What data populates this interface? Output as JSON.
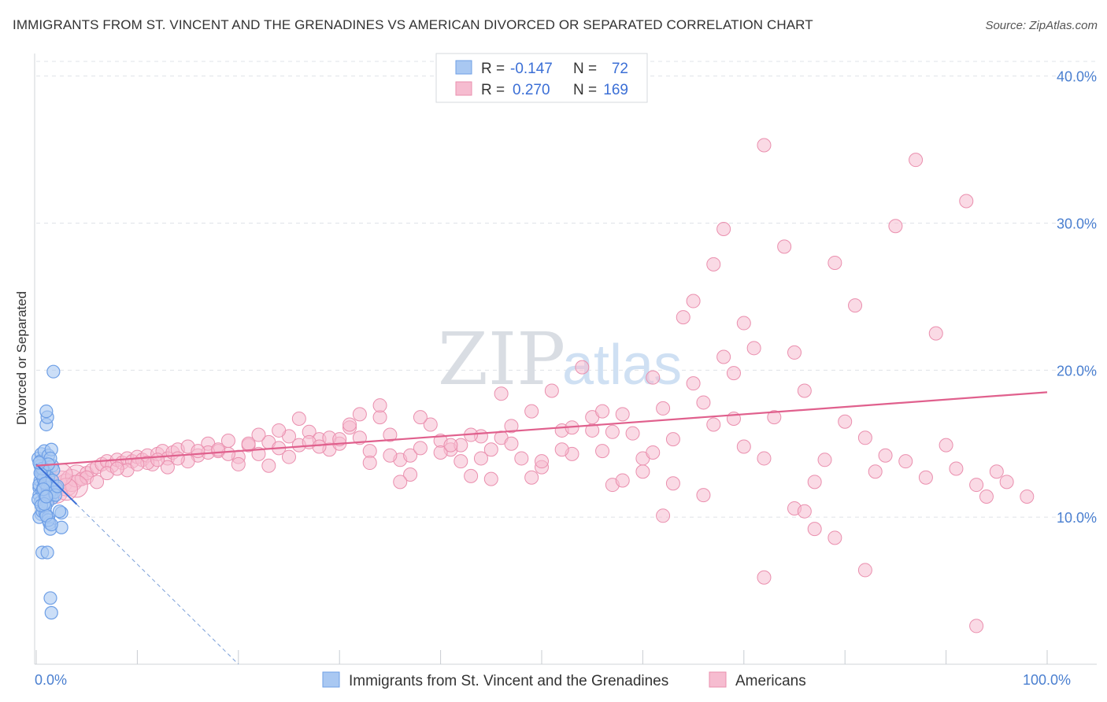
{
  "title": "IMMIGRANTS FROM ST. VINCENT AND THE GRENADINES VS AMERICAN DIVORCED OR SEPARATED CORRELATION CHART",
  "source": "Source: ZipAtlas.com",
  "watermark": {
    "main": "ZIP",
    "sub": "atlas"
  },
  "colors": {
    "blue": "#6e9fe6",
    "blue_fill": "#a9c8f2",
    "blue_line": "#3b6fd6",
    "pink": "#ea8fae",
    "pink_fill": "#f6bcd0",
    "pink_line": "#e0608d",
    "grid": "#dfe3e8",
    "tick_label": "#4a7fd0"
  },
  "stats": [
    {
      "r_label": "R =",
      "r": "-0.147",
      "n_label": "N =",
      "n": "72"
    },
    {
      "r_label": "R =",
      "r": "0.270",
      "n_label": "N =",
      "n": "169"
    }
  ],
  "chart_data": {
    "type": "scatter",
    "title": "IMMIGRANTS FROM ST. VINCENT AND THE GRENADINES VS AMERICAN DIVORCED OR SEPARATED CORRELATION CHART",
    "xlabel": "",
    "ylabel": "Divorced or Separated",
    "xlim": [
      0,
      100
    ],
    "ylim": [
      0,
      41
    ],
    "x_tick_labels": [
      {
        "value": 0,
        "label": "0.0%"
      },
      {
        "value": 100,
        "label": "100.0%"
      }
    ],
    "y_tick_labels": [
      {
        "value": 10,
        "label": "10.0%"
      },
      {
        "value": 20,
        "label": "20.0%"
      },
      {
        "value": 30,
        "label": "30.0%"
      },
      {
        "value": 40,
        "label": "40.0%"
      }
    ],
    "grid": true,
    "legend_position": "bottom-center",
    "series": [
      {
        "name": "Immigrants from St. Vincent and the Grenadines",
        "color": "#6e9fe6",
        "trend": {
          "x": [
            0,
            20
          ],
          "y": [
            13.6,
            0
          ]
        },
        "points": [
          [
            0.3,
            12.0
          ],
          [
            0.4,
            12.5
          ],
          [
            0.5,
            13.2
          ],
          [
            0.3,
            11.5
          ],
          [
            0.6,
            12.8
          ],
          [
            0.2,
            14.0
          ],
          [
            0.4,
            13.5
          ],
          [
            0.5,
            14.3
          ],
          [
            0.7,
            13.0
          ],
          [
            0.3,
            12.2
          ],
          [
            0.6,
            11.8
          ],
          [
            0.8,
            12.4
          ],
          [
            0.4,
            11.0
          ],
          [
            0.5,
            10.2
          ],
          [
            0.3,
            10.0
          ],
          [
            0.6,
            10.4
          ],
          [
            0.9,
            10.3
          ],
          [
            0.2,
            11.2
          ],
          [
            0.7,
            12.0
          ],
          [
            0.4,
            13.8
          ],
          [
            1.0,
            13.2
          ],
          [
            0.8,
            14.5
          ],
          [
            1.2,
            14.2
          ],
          [
            1.0,
            16.3
          ],
          [
            1.1,
            16.8
          ],
          [
            1.0,
            17.2
          ],
          [
            1.5,
            14.6
          ],
          [
            1.6,
            13.5
          ],
          [
            1.7,
            13.2
          ],
          [
            1.2,
            12.7
          ],
          [
            1.4,
            12.2
          ],
          [
            1.3,
            11.8
          ],
          [
            1.5,
            11.5
          ],
          [
            1.8,
            11.9
          ],
          [
            2.0,
            12.0
          ],
          [
            1.6,
            11.3
          ],
          [
            1.1,
            11.0
          ],
          [
            0.9,
            10.7
          ],
          [
            1.2,
            10.0
          ],
          [
            1.3,
            9.6
          ],
          [
            1.4,
            9.2
          ],
          [
            1.2,
            9.8
          ],
          [
            1.0,
            10.1
          ],
          [
            2.5,
            10.3
          ],
          [
            2.3,
            10.4
          ],
          [
            2.5,
            9.3
          ],
          [
            1.5,
            9.5
          ],
          [
            0.6,
            7.6
          ],
          [
            1.1,
            7.6
          ],
          [
            1.4,
            4.5
          ],
          [
            1.5,
            3.5
          ],
          [
            1.7,
            19.9
          ],
          [
            0.8,
            13.1
          ],
          [
            0.5,
            12.9
          ],
          [
            0.7,
            12.6
          ],
          [
            1.1,
            12.0
          ],
          [
            1.3,
            11.6
          ],
          [
            0.9,
            11.4
          ],
          [
            1.4,
            14.0
          ],
          [
            0.5,
            10.8
          ],
          [
            0.8,
            10.9
          ],
          [
            1.6,
            12.5
          ],
          [
            0.6,
            13.3
          ],
          [
            0.4,
            13.0
          ],
          [
            1.2,
            13.6
          ],
          [
            0.9,
            12.3
          ],
          [
            1.8,
            11.7
          ],
          [
            1.9,
            11.5
          ],
          [
            0.7,
            11.9
          ],
          [
            1.0,
            11.4
          ],
          [
            2.1,
            12.1
          ],
          [
            0.3,
            13.7
          ]
        ]
      },
      {
        "name": "Americans",
        "color": "#ea8fae",
        "trend": {
          "x": [
            0,
            100
          ],
          "y": [
            13.5,
            18.5
          ]
        },
        "points": [
          [
            1.5,
            12.0
          ],
          [
            2.0,
            11.7
          ],
          [
            2.5,
            12.4
          ],
          [
            3.0,
            12.2
          ],
          [
            3.5,
            12.5
          ],
          [
            4.0,
            12.8
          ],
          [
            4.5,
            12.6
          ],
          [
            5.0,
            13.0
          ],
          [
            5.5,
            13.2
          ],
          [
            6.0,
            13.4
          ],
          [
            6.5,
            13.6
          ],
          [
            7.0,
            13.8
          ],
          [
            7.5,
            13.5
          ],
          [
            8.0,
            13.9
          ],
          [
            8.5,
            13.7
          ],
          [
            9.0,
            14.0
          ],
          [
            9.5,
            13.8
          ],
          [
            10.0,
            14.1
          ],
          [
            10.5,
            13.9
          ],
          [
            11.0,
            14.2
          ],
          [
            11.5,
            13.6
          ],
          [
            12.0,
            14.3
          ],
          [
            12.5,
            14.5
          ],
          [
            13.0,
            14.0
          ],
          [
            13.5,
            14.4
          ],
          [
            14.0,
            14.6
          ],
          [
            15.0,
            14.8
          ],
          [
            16.0,
            14.2
          ],
          [
            17.0,
            15.0
          ],
          [
            18.0,
            14.5
          ],
          [
            19.0,
            15.2
          ],
          [
            20.0,
            14.1
          ],
          [
            21.0,
            14.9
          ],
          [
            22.0,
            14.3
          ],
          [
            23.0,
            15.1
          ],
          [
            24.0,
            14.7
          ],
          [
            25.0,
            15.5
          ],
          [
            26.0,
            14.9
          ],
          [
            27.0,
            15.8
          ],
          [
            28.0,
            15.3
          ],
          [
            29.0,
            14.6
          ],
          [
            30.0,
            15.0
          ],
          [
            31.0,
            16.1
          ],
          [
            32.0,
            15.4
          ],
          [
            33.0,
            14.5
          ],
          [
            34.0,
            16.8
          ],
          [
            35.0,
            15.6
          ],
          [
            36.0,
            13.9
          ],
          [
            37.0,
            14.2
          ],
          [
            38.0,
            14.7
          ],
          [
            39.0,
            16.3
          ],
          [
            40.0,
            15.2
          ],
          [
            41.0,
            14.6
          ],
          [
            42.0,
            13.8
          ],
          [
            43.0,
            12.8
          ],
          [
            44.0,
            15.5
          ],
          [
            45.0,
            14.6
          ],
          [
            46.0,
            15.4
          ],
          [
            47.0,
            15.0
          ],
          [
            48.0,
            14.0
          ],
          [
            49.0,
            17.2
          ],
          [
            50.0,
            13.4
          ],
          [
            51.0,
            18.6
          ],
          [
            52.0,
            15.9
          ],
          [
            53.0,
            14.3
          ],
          [
            54.0,
            20.2
          ],
          [
            55.0,
            16.8
          ],
          [
            56.0,
            14.5
          ],
          [
            57.0,
            12.2
          ],
          [
            58.0,
            17.0
          ],
          [
            59.0,
            15.7
          ],
          [
            60.0,
            13.1
          ],
          [
            61.0,
            19.5
          ],
          [
            62.0,
            17.4
          ],
          [
            63.0,
            12.3
          ],
          [
            64.0,
            23.6
          ],
          [
            65.0,
            24.7
          ],
          [
            66.0,
            17.8
          ],
          [
            67.0,
            27.2
          ],
          [
            68.0,
            29.6
          ],
          [
            69.0,
            16.7
          ],
          [
            70.0,
            23.2
          ],
          [
            71.0,
            21.5
          ],
          [
            72.0,
            14.0
          ],
          [
            73.0,
            16.8
          ],
          [
            74.0,
            28.4
          ],
          [
            75.0,
            21.2
          ],
          [
            76.0,
            18.6
          ],
          [
            77.0,
            12.4
          ],
          [
            78.0,
            13.9
          ],
          [
            79.0,
            27.3
          ],
          [
            80.0,
            16.5
          ],
          [
            81.0,
            24.4
          ],
          [
            82.0,
            15.4
          ],
          [
            83.0,
            13.1
          ],
          [
            84.0,
            14.2
          ],
          [
            85.0,
            29.8
          ],
          [
            86.0,
            13.8
          ],
          [
            87.0,
            34.3
          ],
          [
            88.0,
            12.7
          ],
          [
            89.0,
            22.5
          ],
          [
            90.0,
            14.9
          ],
          [
            91.0,
            13.3
          ],
          [
            92.0,
            31.5
          ],
          [
            93.0,
            12.2
          ],
          [
            94.0,
            11.4
          ],
          [
            95.0,
            13.1
          ],
          [
            96.0,
            12.4
          ],
          [
            98.0,
            11.4
          ],
          [
            72.0,
            35.3
          ],
          [
            56.0,
            17.2
          ],
          [
            60.0,
            14.0
          ],
          [
            62.0,
            10.1
          ],
          [
            65.0,
            19.1
          ],
          [
            68.0,
            20.9
          ],
          [
            69.0,
            19.8
          ],
          [
            57.0,
            15.8
          ],
          [
            53.0,
            16.1
          ],
          [
            49.0,
            12.7
          ],
          [
            46.0,
            18.4
          ],
          [
            44.0,
            14.0
          ],
          [
            42.0,
            14.9
          ],
          [
            40.0,
            14.4
          ],
          [
            37.0,
            12.9
          ],
          [
            35.0,
            14.2
          ],
          [
            33.0,
            13.7
          ],
          [
            31.0,
            16.3
          ],
          [
            29.0,
            15.4
          ],
          [
            27.0,
            15.1
          ],
          [
            25.0,
            14.1
          ],
          [
            23.0,
            13.5
          ],
          [
            21.0,
            15.0
          ],
          [
            19.0,
            14.3
          ],
          [
            17.0,
            14.4
          ],
          [
            15.0,
            13.8
          ],
          [
            13.0,
            13.4
          ],
          [
            11.0,
            13.7
          ],
          [
            9.0,
            13.2
          ],
          [
            7.0,
            13.0
          ],
          [
            5.0,
            12.7
          ],
          [
            4.0,
            12.1
          ],
          [
            3.0,
            11.9
          ],
          [
            2.5,
            12.9
          ],
          [
            6.0,
            12.4
          ],
          [
            8.0,
            13.3
          ],
          [
            10.0,
            13.6
          ],
          [
            12.0,
            13.9
          ],
          [
            14.0,
            14.0
          ],
          [
            16.0,
            14.5
          ],
          [
            18.0,
            14.6
          ],
          [
            20.0,
            13.6
          ],
          [
            22.0,
            15.6
          ],
          [
            24.0,
            15.9
          ],
          [
            26.0,
            16.7
          ],
          [
            28.0,
            14.8
          ],
          [
            30.0,
            15.3
          ],
          [
            32.0,
            17.0
          ],
          [
            34.0,
            17.6
          ],
          [
            36.0,
            12.4
          ],
          [
            38.0,
            16.8
          ],
          [
            41.0,
            14.9
          ],
          [
            43.0,
            15.6
          ],
          [
            45.0,
            12.6
          ],
          [
            47.0,
            16.2
          ],
          [
            50.0,
            13.8
          ],
          [
            52.0,
            14.6
          ],
          [
            55.0,
            15.9
          ],
          [
            58.0,
            12.5
          ],
          [
            61.0,
            14.4
          ],
          [
            63.0,
            15.3
          ],
          [
            66.0,
            11.5
          ],
          [
            67.0,
            16.3
          ],
          [
            70.0,
            14.8
          ],
          [
            72.0,
            5.9
          ],
          [
            75.0,
            10.6
          ],
          [
            76.0,
            10.4
          ],
          [
            77.0,
            9.2
          ],
          [
            79.0,
            8.6
          ],
          [
            82.0,
            6.4
          ],
          [
            93.0,
            2.6
          ]
        ]
      }
    ]
  },
  "legend": {
    "items": [
      {
        "label": "Immigrants from St. Vincent and the Grenadines"
      },
      {
        "label": "Americans"
      }
    ]
  }
}
